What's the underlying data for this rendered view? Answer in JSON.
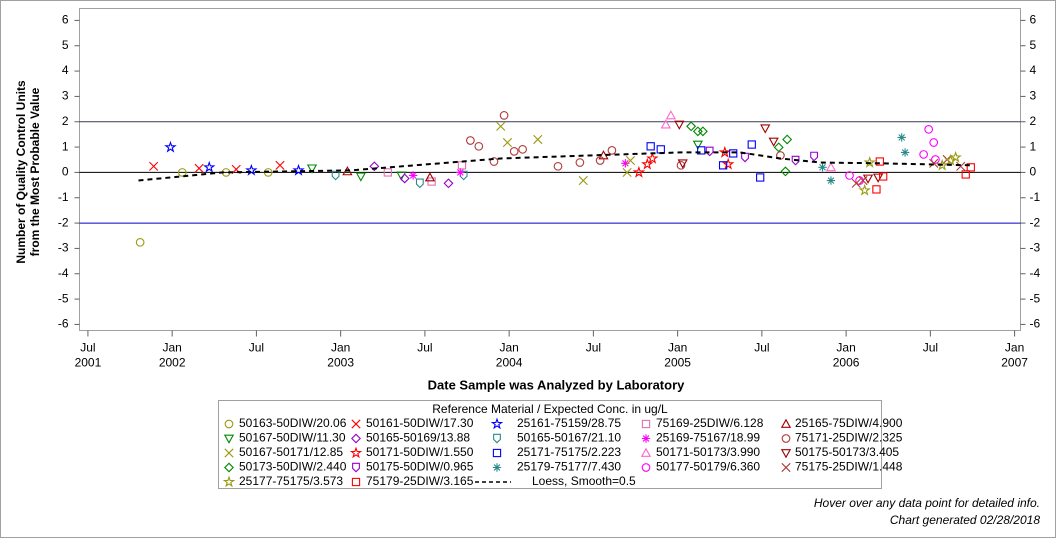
{
  "chart_data": {
    "type": "scatter",
    "ylabel": [
      "Number of Quality Control Units",
      "from the Most Probable Value"
    ],
    "xlabel": "Date Sample was Analyzed by Laboratory",
    "xlim": [
      2001.45,
      2007.035
    ],
    "xticks": [
      {
        "value": 2001.5,
        "label": "Jul",
        "year": "2001"
      },
      {
        "value": 2002,
        "label": "Jan",
        "year": "2002"
      },
      {
        "value": 2002.5,
        "label": "Jul"
      },
      {
        "value": 2003,
        "label": "Jan",
        "year": "2003"
      },
      {
        "value": 2003.5,
        "label": "Jul"
      },
      {
        "value": 2004,
        "label": "Jan",
        "year": "2004"
      },
      {
        "value": 2004.5,
        "label": "Jul"
      },
      {
        "value": 2005,
        "label": "Jan",
        "year": "2005"
      },
      {
        "value": 2005.5,
        "label": "Jul"
      },
      {
        "value": 2006,
        "label": "Jan",
        "year": "2006"
      },
      {
        "value": 2006.5,
        "label": "Jul"
      },
      {
        "value": 2007,
        "label": "Jan",
        "year": "2007"
      }
    ],
    "ylim": [
      -6.24,
      6.47
    ],
    "yticks": [
      -6,
      -5,
      -4,
      -3,
      -2,
      -1,
      0,
      1,
      2,
      3,
      4,
      5,
      6
    ],
    "y2lim": [
      -6.24,
      6.47
    ],
    "y2ticks": [
      -6,
      -5,
      -4,
      -3,
      -2,
      -1,
      0,
      1,
      2,
      3,
      4,
      5,
      6
    ],
    "ref_lines": [
      {
        "value": 2,
        "color": "#3a3a55"
      },
      {
        "value": 0,
        "color": "#000000"
      },
      {
        "value": -2,
        "color": "#0000cc"
      }
    ],
    "legend_title": "Reference Material / Expected Conc. in ug/L",
    "series": [
      {
        "name": "50163-50DIW/20.06",
        "marker": "circle",
        "color": "#9a9a10",
        "x": [
          2001.81,
          2002.06,
          2002.32,
          2002.57
        ],
        "values": [
          -2.76,
          0,
          0,
          0
        ]
      },
      {
        "name": "50161-50DIW/17.30",
        "marker": "x",
        "color": "#ff0000",
        "x": [
          2001.89,
          2002.16,
          2002.38,
          2002.64
        ],
        "values": [
          0.24,
          0.16,
          0.12,
          0.28
        ]
      },
      {
        "name": "25161-75159/28.75",
        "marker": "star",
        "color": "#0000ff",
        "x": [
          2001.99,
          2002.22,
          2002.47,
          2002.75
        ],
        "values": [
          0.99,
          0.2,
          0.08,
          0.08
        ]
      },
      {
        "name": "75169-25DIW/6.128",
        "marker": "square",
        "color": "#e070b0",
        "x": [
          2003.28,
          2003.54,
          2003.72
        ],
        "values": [
          0,
          -0.36,
          0.28
        ]
      },
      {
        "name": "25165-75DIW/4.900",
        "marker": "triangle",
        "color": "#a00000",
        "x": [
          2003.04,
          2003.53,
          2004.56
        ],
        "values": [
          0.04,
          -0.2,
          0.67
        ]
      },
      {
        "name": "50167-50DIW/11.30",
        "marker": "triangle-down",
        "color": "#008800",
        "x": [
          2002.83,
          2003.12,
          2003.36,
          2005.12
        ],
        "values": [
          0.16,
          -0.16,
          -0.12,
          1.1
        ]
      },
      {
        "name": "50165-50169/13.88",
        "marker": "diamond",
        "color": "#9900cc",
        "x": [
          2003.2,
          2003.38,
          2003.64
        ],
        "values": [
          0.24,
          -0.24,
          -0.43
        ]
      },
      {
        "name": "50165-50167/21.10",
        "marker": "homedown",
        "color": "#2a8a8a",
        "x": [
          2002.97,
          2003.47,
          2003.73
        ],
        "values": [
          -0.12,
          -0.43,
          -0.12
        ]
      },
      {
        "name": "25169-75167/18.99",
        "marker": "asterisk",
        "color": "#ff00ff",
        "x": [
          2003.43,
          2003.71,
          2004.69
        ],
        "values": [
          -0.12,
          0,
          0.36
        ]
      },
      {
        "name": "75171-25DIW/2.325",
        "marker": "circle",
        "color": "#b03a3a",
        "x": [
          2003.77,
          2003.82,
          2003.91,
          2003.97,
          2004.03,
          2004.08,
          2004.29,
          2004.42,
          2004.54,
          2004.61,
          2005.02,
          2005.61
        ],
        "values": [
          1.26,
          1.03,
          0.43,
          2.25,
          0.83,
          0.91,
          0.24,
          0.39,
          0.47,
          0.87,
          0.28,
          0.67
        ]
      },
      {
        "name": "50167-50171/12.85",
        "marker": "x",
        "color": "#9a9a10",
        "x": [
          2003.95,
          2003.99,
          2004.17,
          2004.44,
          2004.7,
          2004.72
        ],
        "values": [
          1.82,
          1.18,
          1.3,
          -0.32,
          0,
          0.47
        ]
      },
      {
        "name": "50171-50DIW/1.550",
        "marker": "star",
        "color": "#ff0000",
        "x": [
          2004.77,
          2004.82,
          2004.85,
          2005.28,
          2005.3
        ],
        "values": [
          0,
          0.32,
          0.55,
          0.79,
          0.32
        ]
      },
      {
        "name": "25171-75175/2.223",
        "marker": "square",
        "color": "#0000ff",
        "x": [
          2004.84,
          2004.9,
          2005.14,
          2005.27,
          2005.33,
          2005.44,
          2005.49
        ],
        "values": [
          1.03,
          0.91,
          0.87,
          0.28,
          0.75,
          1.1,
          -0.2
        ]
      },
      {
        "name": "50171-50173/3.990",
        "marker": "triangle",
        "color": "#ff66cc",
        "x": [
          2004.93,
          2004.96,
          2005.91
        ],
        "values": [
          1.89,
          2.25,
          0.2
        ]
      },
      {
        "name": "50175-50173/3.405",
        "marker": "triangle-down",
        "color": "#a00000",
        "x": [
          2005.01,
          2005.03,
          2005.52,
          2005.57,
          2006.13,
          2006.19
        ],
        "values": [
          1.89,
          0.36,
          1.74,
          1.22,
          -0.24,
          -0.2
        ]
      },
      {
        "name": "50173-50DIW/2.440",
        "marker": "diamond",
        "color": "#008800",
        "x": [
          2005.08,
          2005.12,
          2005.15,
          2005.6,
          2005.65,
          2005.64
        ],
        "values": [
          1.82,
          1.62,
          1.62,
          0.99,
          1.3,
          0.04
        ]
      },
      {
        "name": "50175-50DIW/0.965",
        "marker": "homedown",
        "color": "#9900cc",
        "x": [
          2005.19,
          2005.4,
          2005.7,
          2005.81
        ],
        "values": [
          0.83,
          0.59,
          0.47,
          0.63
        ]
      },
      {
        "name": "25179-75177/7.430",
        "marker": "asterisk",
        "color": "#2a8a8a",
        "x": [
          2005.86,
          2005.91,
          2006.33,
          2006.35
        ],
        "values": [
          0.2,
          -0.32,
          1.38,
          0.79
        ]
      },
      {
        "name": "50177-50179/6.360",
        "marker": "circle",
        "color": "#ff00ff",
        "x": [
          2006.02,
          2006.08,
          2006.49,
          2006.52,
          2006.46,
          2006.53
        ],
        "values": [
          -0.12,
          -0.32,
          1.7,
          1.18,
          0.71,
          0.51
        ]
      },
      {
        "name": "75175-25DIW/1.448",
        "marker": "x",
        "color": "#b03a3a",
        "x": [
          2006.06,
          2006.1,
          2006.52,
          2006.6,
          2006.68
        ],
        "values": [
          -0.43,
          -0.32,
          0.36,
          0.51,
          0.24
        ]
      },
      {
        "name": "25177-75175/3.573",
        "marker": "star",
        "color": "#9a9a10",
        "x": [
          2006.11,
          2006.14,
          2006.57,
          2006.62,
          2006.65
        ],
        "values": [
          -0.71,
          0.39,
          0.28,
          0.47,
          0.59
        ]
      },
      {
        "name": "75179-25DIW/3.165",
        "marker": "square",
        "color": "#ff0000",
        "x": [
          2006.18,
          2006.22,
          2006.2,
          2006.71,
          2006.74
        ],
        "values": [
          -0.67,
          -0.16,
          0.43,
          -0.08,
          0.2
        ]
      }
    ],
    "loess": {
      "name": "Loess, Smooth=0.5",
      "color": "#000000",
      "x": [
        2001.8,
        2002.3,
        2003.06,
        2003.95,
        2004.48,
        2005.02,
        2005.37,
        2005.61,
        2005.85,
        2006.2,
        2006.74
      ],
      "values": [
        -0.32,
        0,
        0.08,
        0.55,
        0.67,
        0.79,
        0.79,
        0.55,
        0.39,
        0.36,
        0.28
      ]
    },
    "notes": [
      "Hover over any data point for detailed info.",
      "Chart generated 02/28/2018"
    ]
  }
}
